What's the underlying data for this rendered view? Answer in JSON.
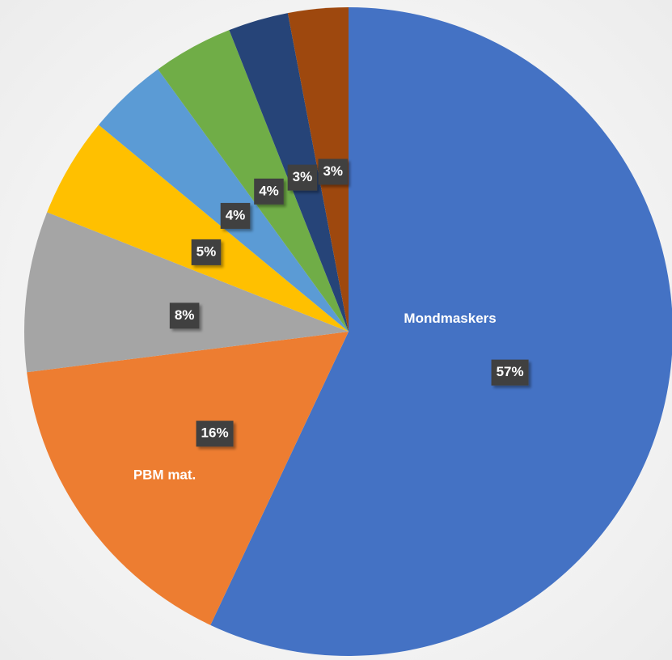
{
  "chart_data": {
    "type": "pie",
    "categories": [
      "Mondmaskers",
      "PBM mat.",
      null,
      null,
      null,
      null,
      null,
      null
    ],
    "values": [
      57,
      16,
      8,
      5,
      4,
      4,
      3,
      3
    ],
    "value_labels": [
      "57%",
      "16%",
      "8%",
      "5%",
      "4%",
      "4%",
      "3%",
      "3%"
    ],
    "colors": [
      "#4472c4",
      "#ed7d31",
      "#a5a5a5",
      "#ffc000",
      "#5b9bd5",
      "#70ad47",
      "#264478",
      "#9e480e"
    ]
  }
}
